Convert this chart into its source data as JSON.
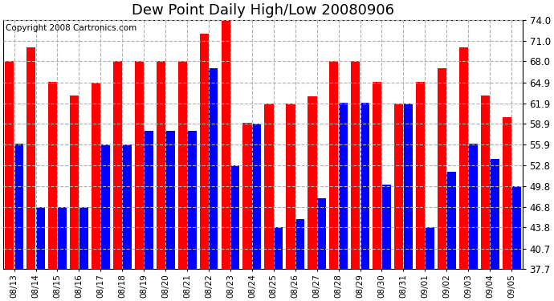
{
  "title": "Dew Point Daily High/Low 20080906",
  "copyright": "Copyright 2008 Cartronics.com",
  "dates": [
    "08/13",
    "08/14",
    "08/15",
    "08/16",
    "08/17",
    "08/18",
    "08/19",
    "08/20",
    "08/21",
    "08/22",
    "08/23",
    "08/24",
    "08/25",
    "08/26",
    "08/27",
    "08/28",
    "08/29",
    "08/30",
    "08/31",
    "09/01",
    "09/02",
    "09/03",
    "09/04",
    "09/05"
  ],
  "highs": [
    68.0,
    70.0,
    65.0,
    63.0,
    64.9,
    68.0,
    68.0,
    68.0,
    68.0,
    72.0,
    74.0,
    59.0,
    61.9,
    61.9,
    62.9,
    68.0,
    68.0,
    65.0,
    61.9,
    65.0,
    67.0,
    70.0,
    63.0,
    59.9
  ],
  "lows": [
    56.0,
    46.8,
    46.8,
    46.8,
    55.9,
    55.9,
    57.9,
    57.9,
    57.9,
    67.0,
    52.8,
    58.9,
    43.8,
    45.0,
    48.0,
    62.0,
    62.0,
    50.0,
    61.9,
    43.8,
    51.9,
    56.0,
    53.8,
    49.8
  ],
  "yticks": [
    37.7,
    40.7,
    43.8,
    46.8,
    49.8,
    52.8,
    55.9,
    58.9,
    61.9,
    64.9,
    68.0,
    71.0,
    74.0
  ],
  "ymin": 37.7,
  "ymax": 74.0,
  "bar_color_high": "#ff0000",
  "bar_color_low": "#0000ff",
  "bg_color": "#ffffff",
  "grid_color": "#b0b0b0",
  "title_fontsize": 13,
  "copyright_fontsize": 7.5
}
